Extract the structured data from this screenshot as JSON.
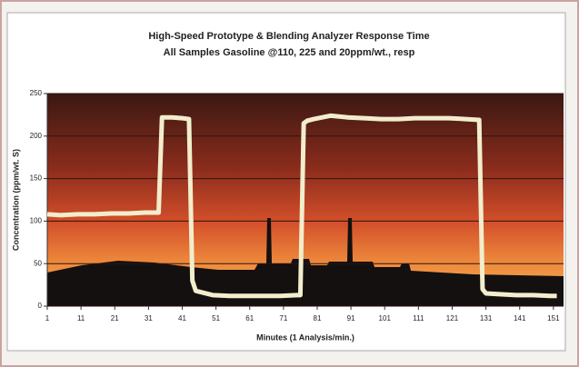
{
  "chart_data": {
    "type": "line",
    "title": "High-Speed Prototype & Blending Analyzer Response Time",
    "subtitle": "All Samples Gasoline @110, 225 and 20ppm/wt., resp",
    "xlabel": "Minutes (1 Analysis/min.)",
    "ylabel": "Concentration (ppm/wt. S)",
    "x": [
      1,
      5,
      10,
      15,
      20,
      25,
      30,
      34,
      35,
      38,
      41,
      43,
      44,
      45,
      50,
      55,
      60,
      65,
      70,
      75,
      76,
      77,
      78,
      80,
      85,
      90,
      95,
      100,
      105,
      110,
      115,
      120,
      125,
      129,
      130,
      131,
      135,
      140,
      145,
      150,
      152
    ],
    "series": [
      {
        "color": "#f2edcc",
        "values": [
          108,
          107,
          108,
          108,
          109,
          109,
          110,
          110,
          222,
          222,
          221,
          220,
          30,
          18,
          13,
          12,
          12,
          12,
          12,
          13,
          13,
          215,
          218,
          220,
          224,
          222,
          221,
          220,
          220,
          221,
          221,
          221,
          220,
          219,
          20,
          15,
          14,
          13,
          13,
          12,
          12
        ]
      }
    ],
    "xlim": [
      1,
      154
    ],
    "ylim": [
      0,
      250
    ],
    "xticks": [
      1,
      11,
      21,
      31,
      41,
      51,
      61,
      71,
      81,
      91,
      101,
      111,
      121,
      131,
      141,
      151
    ],
    "yticks": [
      0,
      50,
      100,
      150,
      200,
      250
    ],
    "grid": true
  }
}
